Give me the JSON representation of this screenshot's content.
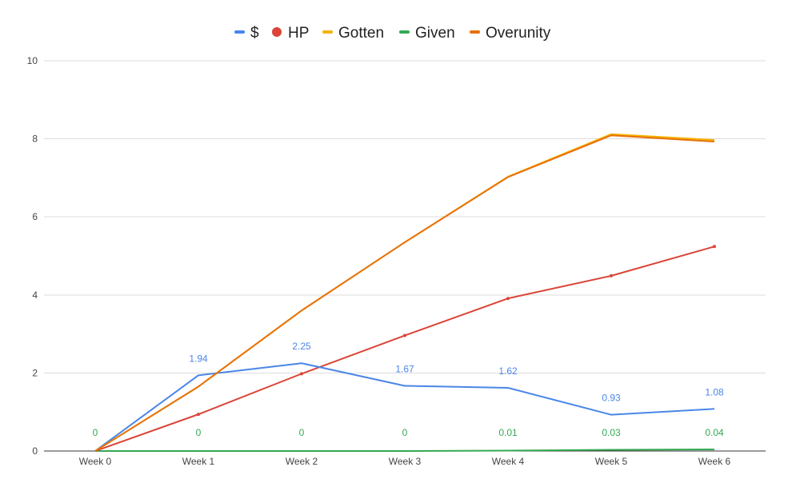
{
  "chart_data": {
    "type": "line",
    "categories": [
      "Week 0",
      "Week 1",
      "Week 2",
      "Week 3",
      "Week 4",
      "Week 5",
      "Week 6"
    ],
    "ylim": [
      0,
      10
    ],
    "yticks": [
      0,
      2,
      4,
      6,
      8,
      10
    ],
    "grid": true,
    "legend_position": "top",
    "series": [
      {
        "name": "$",
        "color": "#4a86e8",
        "marker": "line",
        "values": [
          0,
          1.94,
          2.25,
          1.67,
          1.62,
          0.93,
          1.08
        ],
        "data_labels": [
          "0",
          "1.94",
          "2.25",
          "1.67",
          "1.62",
          "0.93",
          "1.08"
        ],
        "show_labels_from": 1
      },
      {
        "name": "HP",
        "color": "#db4437",
        "marker": "dot",
        "values": [
          0,
          0.94,
          1.98,
          2.96,
          3.91,
          4.49,
          5.24
        ]
      },
      {
        "name": "Gotten",
        "color": "#f4b400",
        "marker": "line",
        "values": [
          0,
          1.65,
          3.6,
          5.35,
          7.03,
          8.12,
          7.97
        ]
      },
      {
        "name": "Given",
        "color": "#34a853",
        "marker": "line",
        "values": [
          0,
          0,
          0,
          0,
          0.01,
          0.03,
          0.04
        ],
        "data_labels": [
          "0",
          "0",
          "0",
          "0",
          "0.01",
          "0.03",
          "0.04"
        ],
        "show_labels_from": 0
      },
      {
        "name": "Overunity",
        "color": "#e8710a",
        "marker": "line",
        "values": [
          0,
          1.65,
          3.6,
          5.35,
          7.02,
          8.09,
          7.93
        ]
      }
    ]
  }
}
